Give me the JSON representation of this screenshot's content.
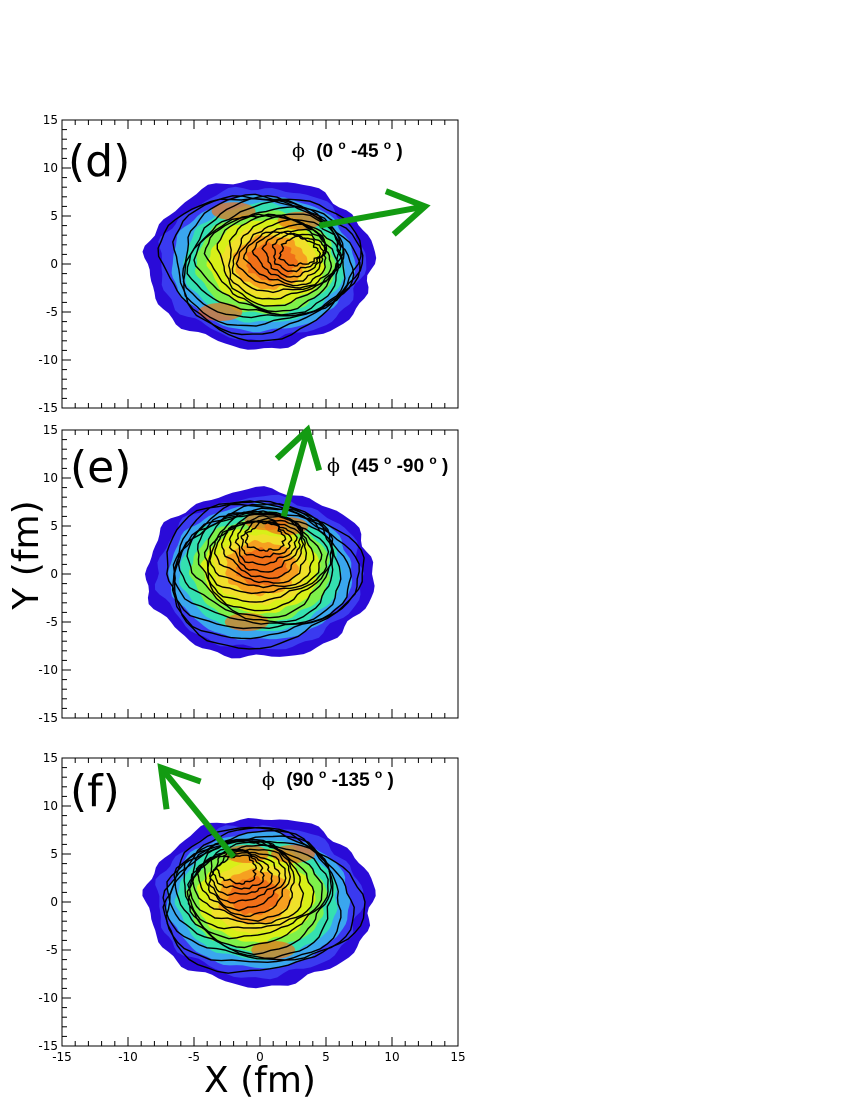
{
  "chart_data": {
    "type": "heatmap",
    "xlabel": "X (fm)",
    "ylabel": "Y (fm)",
    "xlim": [
      -15,
      15
    ],
    "ylim": [
      -15,
      15
    ],
    "x_ticks": [
      "-15",
      "-10",
      "-5",
      "0",
      "5",
      "10",
      "15"
    ],
    "y_ticks": [
      "-15",
      "-10",
      "-5",
      "0",
      "5",
      "10",
      "15"
    ],
    "grid": false,
    "colormap": [
      "#2a0bd8",
      "#3a3af0",
      "#3aa6ee",
      "#35e0b0",
      "#7ef04a",
      "#d8f018",
      "#f0e02a",
      "#f6a020",
      "#f07018"
    ],
    "arrow_color": "#139b12",
    "contour_color": "#000000",
    "panels": [
      {
        "label": "(d)",
        "phi_symbol": "ϕ",
        "phi_open": "(0",
        "phi_mid": "-45",
        "phi_close": ")",
        "degree": "o",
        "arrow": {
          "from": [
            4.5,
            4.0
          ],
          "to": [
            12.5,
            6.0
          ]
        },
        "hot_x": 3.5,
        "hot_y": 1.5,
        "hot_spots": [
          [
            -2.0,
            5.5
          ],
          [
            -3.0,
            -5.0
          ],
          [
            3.0,
            4.5
          ]
        ]
      },
      {
        "label": "(e)",
        "phi_symbol": "ϕ",
        "phi_open": "(45",
        "phi_mid": "-90",
        "phi_close": ")",
        "degree": "o",
        "arrow": {
          "from": [
            1.8,
            6.0
          ],
          "to": [
            3.6,
            15.0
          ]
        },
        "hot_x": 0.5,
        "hot_y": 4.5,
        "hot_spots": [
          [
            0.5,
            5.5
          ],
          [
            -1.0,
            -5.0
          ],
          [
            2.0,
            5.0
          ]
        ]
      },
      {
        "label": "(f)",
        "phi_symbol": "ϕ",
        "phi_open": "(90",
        "phi_mid": "-135",
        "phi_close": ")",
        "degree": "o",
        "arrow": {
          "from": [
            -2.0,
            4.7
          ],
          "to": [
            -7.5,
            14.0
          ]
        },
        "hot_x": -2.0,
        "hot_y": 4.0,
        "hot_spots": [
          [
            -1.0,
            5.0
          ],
          [
            1.0,
            -5.0
          ],
          [
            2.5,
            5.0
          ]
        ]
      }
    ]
  }
}
